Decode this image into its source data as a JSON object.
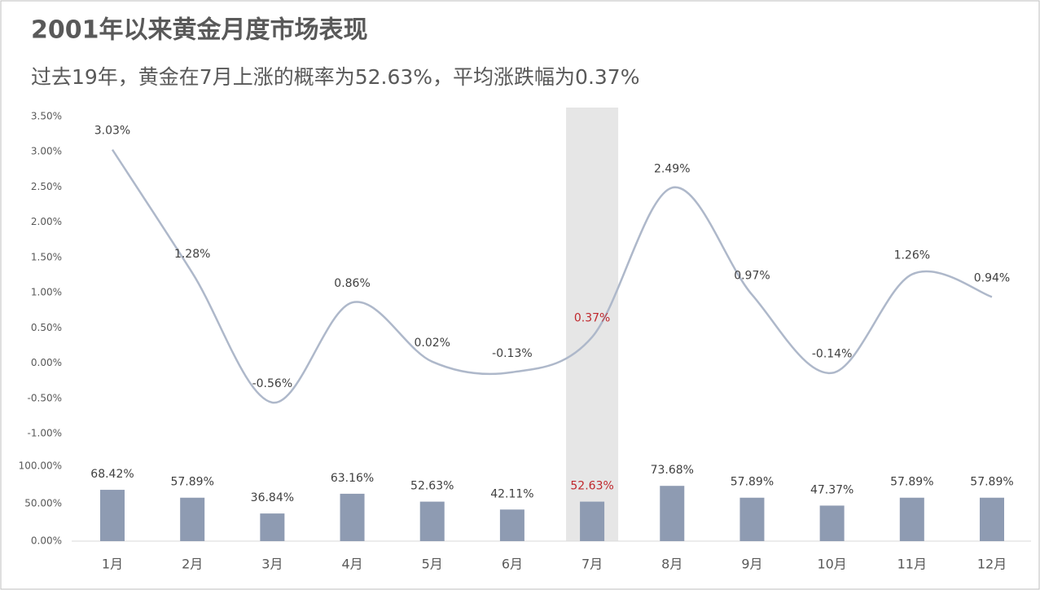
{
  "title": "2001年以来黄金月度市场表现",
  "subtitle": "过去19年，黄金在7月上涨的概率为52.63%，平均涨跌幅为0.37%",
  "chart_data": [
    {
      "type": "line",
      "smooth": true,
      "color": "#aeb8ca",
      "label_color": "#404040",
      "highlight_index": 6,
      "highlight_color": "#c0282d",
      "highlight_band": "#e6e6e6",
      "values": [
        3.03,
        1.28,
        -0.56,
        0.86,
        0.02,
        -0.13,
        0.37,
        2.49,
        0.97,
        -0.14,
        1.26,
        0.94
      ],
      "value_labels": [
        "3.03%",
        "1.28%",
        "-0.56%",
        "0.86%",
        "0.02%",
        "-0.13%",
        "0.37%",
        "2.49%",
        "0.97%",
        "-0.14%",
        "1.26%",
        "0.94%"
      ],
      "ylim": [
        -1.0,
        3.5
      ],
      "yticks": [
        {
          "value": 3.5,
          "label": "3.50%"
        },
        {
          "value": 3.0,
          "label": "3.00%"
        },
        {
          "value": 2.5,
          "label": "2.50%"
        },
        {
          "value": 2.0,
          "label": "2.00%"
        },
        {
          "value": 1.5,
          "label": "1.50%"
        },
        {
          "value": 1.0,
          "label": "1.00%"
        },
        {
          "value": 0.5,
          "label": "0.50%"
        },
        {
          "value": 0.0,
          "label": "0.00%"
        },
        {
          "value": -0.5,
          "label": "-0.50%"
        },
        {
          "value": -1.0,
          "label": "-1.00%"
        }
      ]
    },
    {
      "type": "bar",
      "color": "#8e9bb2",
      "categories": [
        "1月",
        "2月",
        "3月",
        "4月",
        "5月",
        "6月",
        "7月",
        "8月",
        "9月",
        "10月",
        "11月",
        "12月"
      ],
      "values": [
        68.42,
        57.89,
        36.84,
        63.16,
        52.63,
        42.11,
        52.63,
        73.68,
        57.89,
        47.37,
        57.89,
        57.89
      ],
      "value_labels": [
        "68.42%",
        "57.89%",
        "36.84%",
        "63.16%",
        "52.63%",
        "42.11%",
        "52.63%",
        "73.68%",
        "57.89%",
        "47.37%",
        "57.89%",
        "57.89%"
      ],
      "ylim": [
        0,
        100
      ],
      "yticks": [
        {
          "value": 100,
          "label": "100.00%"
        },
        {
          "value": 50,
          "label": "50.00%"
        },
        {
          "value": 0,
          "label": "0.00%"
        }
      ]
    }
  ]
}
